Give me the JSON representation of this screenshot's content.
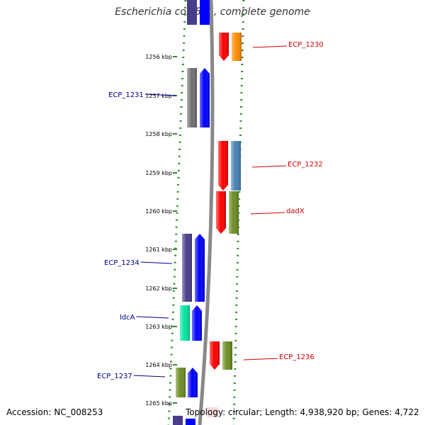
{
  "title": "Escherichia coli 536, complete genome",
  "footer": {
    "accession": "Accession: NC_008253",
    "topology": "Topology: circular; Length: 4,938,920 bp; Genes: 4,722"
  },
  "colors": {
    "forward_label": "#00008b",
    "reverse_label": "#cc0000",
    "dots": "#2e8b2e",
    "backbone": "#888888"
  },
  "tick_labels": [
    {
      "label": "1256 kbp"
    },
    {
      "label": "1257 kbp"
    },
    {
      "label": "1258 kbp"
    },
    {
      "label": "1259 kbp"
    },
    {
      "label": "1260 kbp"
    },
    {
      "label": "1261 kbp"
    },
    {
      "label": "1262 kbp"
    },
    {
      "label": "1263 kbp"
    },
    {
      "label": "1264 kbp"
    },
    {
      "label": "1265 kbp"
    }
  ],
  "genes": [
    {
      "label": "ECP_1230",
      "strand": "reverse",
      "cog_color": "#ff8c00"
    },
    {
      "label": "ECP_1231",
      "strand": "forward",
      "cog_color": "#707070"
    },
    {
      "label": "ECP_1232",
      "strand": "reverse",
      "cog_color": "#4682b4"
    },
    {
      "label": "dadX",
      "strand": "reverse",
      "cog_color": "#6b8e23"
    },
    {
      "label": "ECP_1234",
      "strand": "forward",
      "cog_color": "#483d8b"
    },
    {
      "label": "ldcA",
      "strand": "forward",
      "cog_color": "#00e5a0"
    },
    {
      "label": "ECP_1236",
      "strand": "reverse",
      "cog_color": "#6b8e23"
    },
    {
      "label": "ECP_1237",
      "strand": "forward",
      "cog_color": "#6b8e23"
    }
  ]
}
